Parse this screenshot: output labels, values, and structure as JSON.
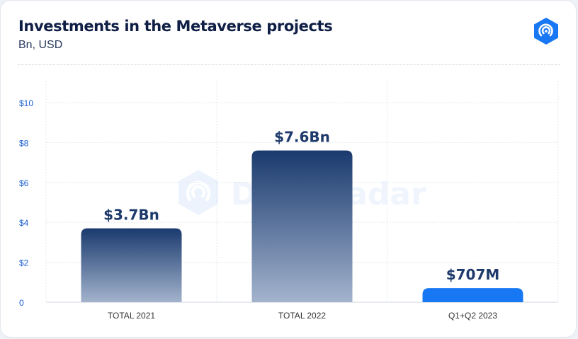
{
  "header": {
    "title": "Investments in the Metaverse projects",
    "subtitle": "Bn, USD"
  },
  "brand": {
    "logo_icon": "dealroom-radar-logo-icon",
    "watermark": "DappRadar",
    "accent": "#1877f2"
  },
  "chart_data": {
    "type": "bar",
    "title": "Investments in the Metaverse projects",
    "subtitle": "Bn, USD",
    "categories": [
      "TOTAL 2021",
      "TOTAL 2022",
      "Q1+Q2 2023"
    ],
    "values": [
      3.7,
      7.6,
      0.707
    ],
    "data_labels": [
      "$3.7Bn",
      "$7.6Bn",
      "$707M"
    ],
    "ylim": [
      0,
      10
    ],
    "yticks": [
      0,
      2,
      4,
      6,
      8,
      10
    ],
    "ytick_labels": [
      "0",
      "$2",
      "$4",
      "$6",
      "$8",
      "$10"
    ],
    "grid": true,
    "legend": "none",
    "colors": {
      "bar_gradient_top": "#1a3a6e",
      "bar_gradient_bottom": "#a3b3cd",
      "highlight_bar": "#1877f2",
      "data_label": "#1e3a6c",
      "highlight_label": "#1e3a6c",
      "tick_label": "#1a5fd6",
      "category_label": "#333333"
    }
  }
}
